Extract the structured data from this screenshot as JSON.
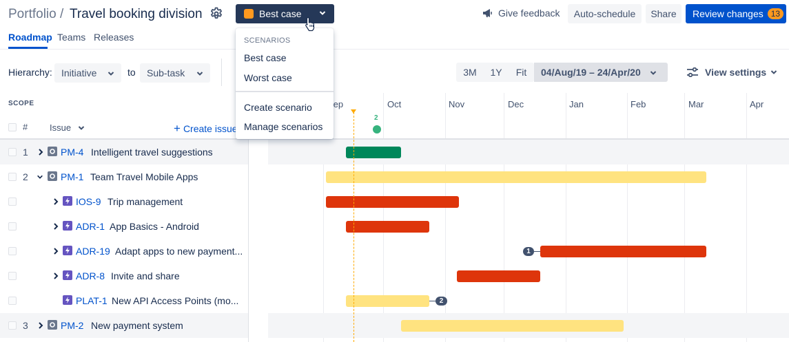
{
  "header": {
    "breadcrumb": "Portfolio /",
    "title": "Travel booking division",
    "scenario_selected": "Best case",
    "scenario_color": "#ff991f",
    "give_feedback": "Give feedback",
    "auto_schedule": "Auto-schedule",
    "share": "Share",
    "review_changes": "Review changes",
    "review_count": "13"
  },
  "tabs": [
    {
      "label": "Roadmap",
      "active": true
    },
    {
      "label": "Teams"
    },
    {
      "label": "Releases"
    }
  ],
  "toolbar": {
    "hierarchy_label": "Hierarchy:",
    "hierarchy_from": "Initiative",
    "to_label": "to",
    "hierarchy_to": "Sub-task",
    "zoom_options": [
      "3M",
      "1Y",
      "Fit"
    ],
    "date_range": "04/Aug/19 – 24/Apr/20",
    "view_settings": "View settings"
  },
  "scope": {
    "label": "SCOPE",
    "col_hash": "#",
    "col_issue": "Issue",
    "create_issue": "Create issue"
  },
  "dropdown": {
    "heading": "SCENARIOS",
    "scenarios": [
      "Best case",
      "Worst case"
    ],
    "actions": [
      "Create scenario",
      "Manage scenarios"
    ]
  },
  "timeline": {
    "months": [
      "Sep",
      "Oct",
      "Nov",
      "Dec",
      "Jan",
      "Feb",
      "Mar",
      "Apr"
    ],
    "release_count": "2"
  },
  "rows": [
    {
      "num": "1",
      "key": "PM-4",
      "title": "Intelligent travel suggestions",
      "type": "initiative",
      "expand": "right",
      "shaded": true,
      "bar_color": "green"
    },
    {
      "num": "2",
      "key": "PM-1",
      "title": "Team Travel Mobile Apps",
      "type": "initiative",
      "expand": "down",
      "shaded": false,
      "bar_color": "yellow"
    },
    {
      "num": "",
      "key": "IOS-9",
      "title": "Trip management",
      "type": "epic",
      "expand": "right",
      "shaded": false,
      "bar_color": "red"
    },
    {
      "num": "",
      "key": "ADR-1",
      "title": "App Basics - Android",
      "type": "epic",
      "expand": "right",
      "shaded": false,
      "bar_color": "red"
    },
    {
      "num": "",
      "key": "ADR-19",
      "title": "Adapt apps to new payment...",
      "type": "epic",
      "expand": "right",
      "shaded": false,
      "bar_color": "red",
      "dep_before": "1"
    },
    {
      "num": "",
      "key": "ADR-8",
      "title": "Invite and share",
      "type": "epic",
      "expand": "right",
      "shaded": false,
      "bar_color": "red"
    },
    {
      "num": "",
      "key": "PLAT-1",
      "title": "New API Access Points (mo...",
      "type": "epic",
      "expand": "none",
      "shaded": false,
      "bar_color": "yellow",
      "dep_after": "2"
    },
    {
      "num": "3",
      "key": "PM-2",
      "title": "New payment system",
      "type": "initiative",
      "expand": "right",
      "shaded": true,
      "bar_color": "yellow"
    }
  ],
  "colors": {
    "initiative_icon": "#6b778c",
    "epic_icon": "#6554c0",
    "bar_green": "#00875a",
    "bar_yellow": "#ffe380",
    "bar_red": "#de350b",
    "primary": "#0052cc"
  }
}
